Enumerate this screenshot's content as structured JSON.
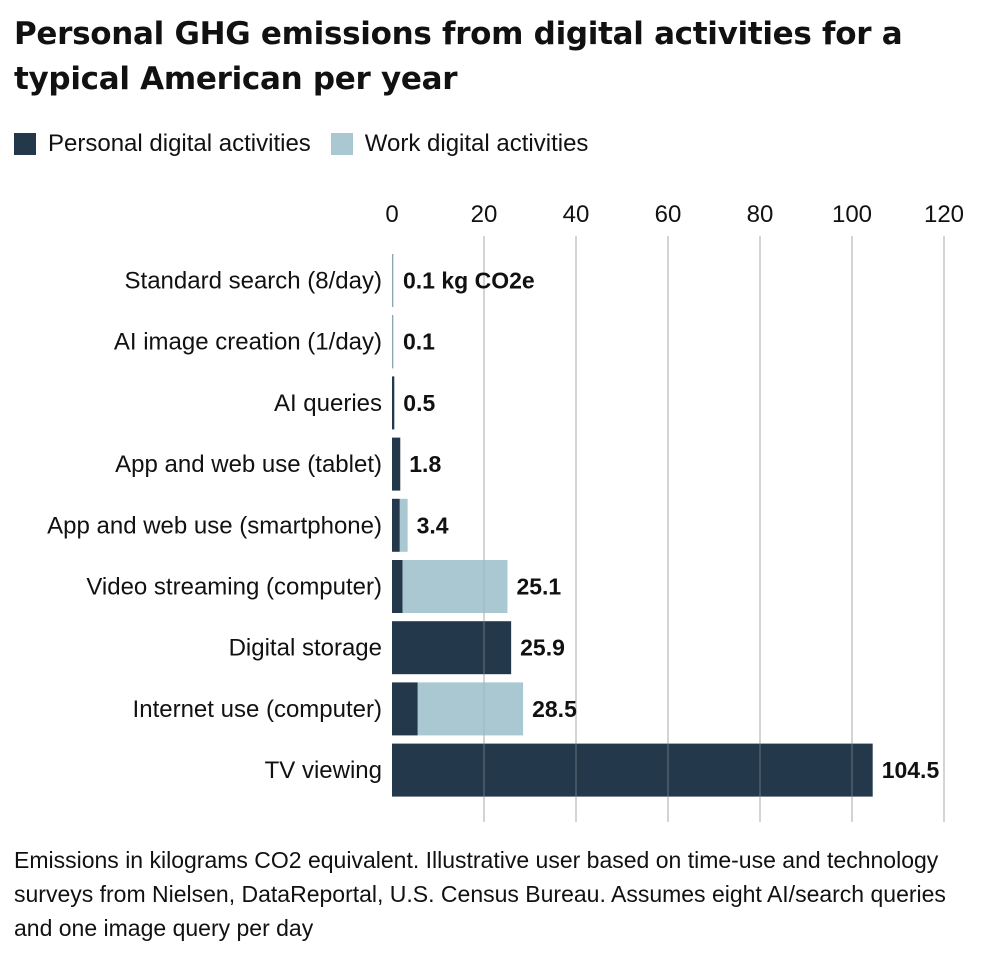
{
  "title": "Personal GHG emissions from digital activities for a typical American per year",
  "legend": {
    "personal_label": "Personal digital activities",
    "work_label": "Work digital activities"
  },
  "colors": {
    "personal": "#23384a",
    "work": "#aac8d1",
    "grid": "#c8c8c8",
    "text": "#111111"
  },
  "chart_data": {
    "type": "bar",
    "orientation": "horizontal",
    "stacked": true,
    "xlim": [
      0,
      120
    ],
    "xticks": [
      0,
      20,
      40,
      60,
      80,
      100,
      120
    ],
    "grid": true,
    "legend_position": "top-left",
    "categories": [
      "Standard search (8/day)",
      "AI image creation (1/day)",
      "AI queries",
      "App and web use (tablet)",
      "App and web use (smartphone)",
      "Video streaming (computer)",
      "Digital storage",
      "Internet use (computer)",
      "TV viewing"
    ],
    "series": [
      {
        "name": "Personal digital activities",
        "values": [
          0.05,
          0.05,
          0.5,
          1.8,
          1.7,
          2.3,
          25.9,
          5.6,
          104.5
        ]
      },
      {
        "name": "Work digital activities",
        "values": [
          0.05,
          0.05,
          0,
          0,
          1.7,
          22.8,
          0,
          22.9,
          0
        ]
      }
    ],
    "data_labels": [
      "0.1 kg CO2e",
      "0.1",
      "0.5",
      "1.8",
      "3.4",
      "25.1",
      "25.9",
      "28.5",
      "104.5"
    ]
  },
  "note": "Emissions in kilograms CO2 equivalent. Illustrative user based on time-use and technology surveys from Nielsen, DataReportal, U.S. Census Bureau. Assumes eight AI/search queries and one image query per day"
}
